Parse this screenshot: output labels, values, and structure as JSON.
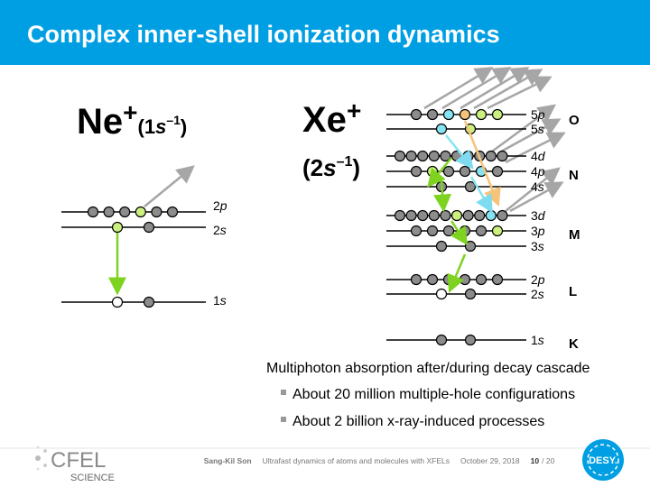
{
  "header": {
    "title": "Complex inner-shell ionization dynamics"
  },
  "ne": {
    "element": "Ne",
    "charge": "+",
    "open": "(1",
    "orbital": "s",
    "exponent": "–1",
    "close": ")",
    "levels": [
      {
        "n": "2",
        "l": "p"
      },
      {
        "n": "2",
        "l": "s"
      },
      {
        "n": "1",
        "l": "s"
      }
    ]
  },
  "xe": {
    "element": "Xe",
    "charge": "+",
    "open": "(2",
    "orbital": "s",
    "exponent": "–1",
    "close": ")",
    "levels": [
      {
        "n": "5",
        "l": "p"
      },
      {
        "n": "5",
        "l": "s"
      },
      {
        "n": "4",
        "l": "d"
      },
      {
        "n": "4",
        "l": "p"
      },
      {
        "n": "4",
        "l": "s"
      },
      {
        "n": "3",
        "l": "d"
      },
      {
        "n": "3",
        "l": "p"
      },
      {
        "n": "3",
        "l": "s"
      },
      {
        "n": "2",
        "l": "p"
      },
      {
        "n": "2",
        "l": "s"
      },
      {
        "n": "1",
        "l": "s"
      }
    ],
    "shells": [
      "O",
      "N",
      "M",
      "L",
      "K"
    ]
  },
  "body": {
    "heading": "Multiphoton absorption after/during decay cascade",
    "bullets": [
      "About 20 million multiple-hole configurations",
      "About 2 billion x-ray-induced processes"
    ]
  },
  "footer": {
    "author": "Sang-Kil Son",
    "talk": "Ultrafast dynamics of atoms and molecules with XFELs",
    "date": "October 29, 2018",
    "page": "10",
    "total": "/ 20"
  },
  "logos": {
    "cfel": "CFEL",
    "science": "SCIENCE",
    "desy": "DESY."
  }
}
